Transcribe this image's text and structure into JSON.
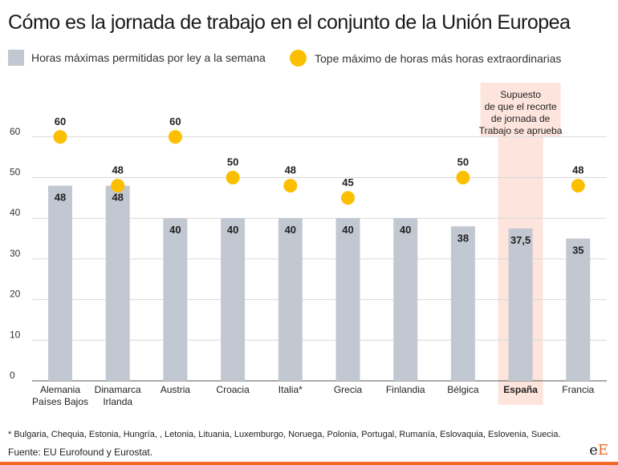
{
  "header": {
    "title": "Cómo es la jornada de trabajo en el conjunto de la Unión Europea"
  },
  "legend": {
    "bars_label": "Horas máximas permitidas por ley a la semana",
    "dots_label": "Tope máximo de horas más horas extraordinarias"
  },
  "chart_data": {
    "type": "bar",
    "categories": [
      "Alemania\nPaíses Bajos",
      "Dinamarca\nIrlanda",
      "Austria",
      "Croacia",
      "Italia*",
      "Grecia",
      "Finlandia",
      "Bélgica",
      "España",
      "Francia"
    ],
    "series": [
      {
        "name": "Horas máximas permitidas por ley a la semana",
        "type": "bar",
        "values": [
          48,
          48,
          40,
          40,
          40,
          40,
          40,
          38,
          37.5,
          35
        ],
        "labels": [
          "48",
          "48",
          "40",
          "40",
          "40",
          "40",
          "40",
          "38",
          "37,5",
          "35"
        ]
      },
      {
        "name": "Tope máximo de horas más horas extraordinarias",
        "type": "scatter",
        "values": [
          60,
          48,
          60,
          50,
          48,
          45,
          null,
          50,
          null,
          48
        ],
        "labels": [
          "60",
          "48",
          "60",
          "50",
          "48",
          "45",
          "",
          "50",
          "",
          "48"
        ]
      }
    ],
    "yticks": [
      0,
      10,
      20,
      30,
      40,
      50,
      60
    ],
    "ylim": [
      0,
      60
    ],
    "grid": true,
    "highlight": {
      "category": "España",
      "annotation": [
        "Supuesto",
        "de que el recorte",
        "de jornada de",
        "Trabajo se aprueba"
      ]
    },
    "colors": {
      "bar": "#c2c8d1",
      "dot": "#fcbf00",
      "highlight_bg": "#fde4dc",
      "grid": "#d9d9d9"
    }
  },
  "footer": {
    "footnote": "* Bulgaria, Chequia, Estonia, Hungría, , Letonia, Lituania, Luxemburgo, Noruega, Polonia, Portugal, Rumanía, Eslovaquia, Eslovenia, Suecia.",
    "source": "Fuente: EU Eurofound y Eurostat.",
    "logo_a": "e",
    "logo_b": "E"
  }
}
